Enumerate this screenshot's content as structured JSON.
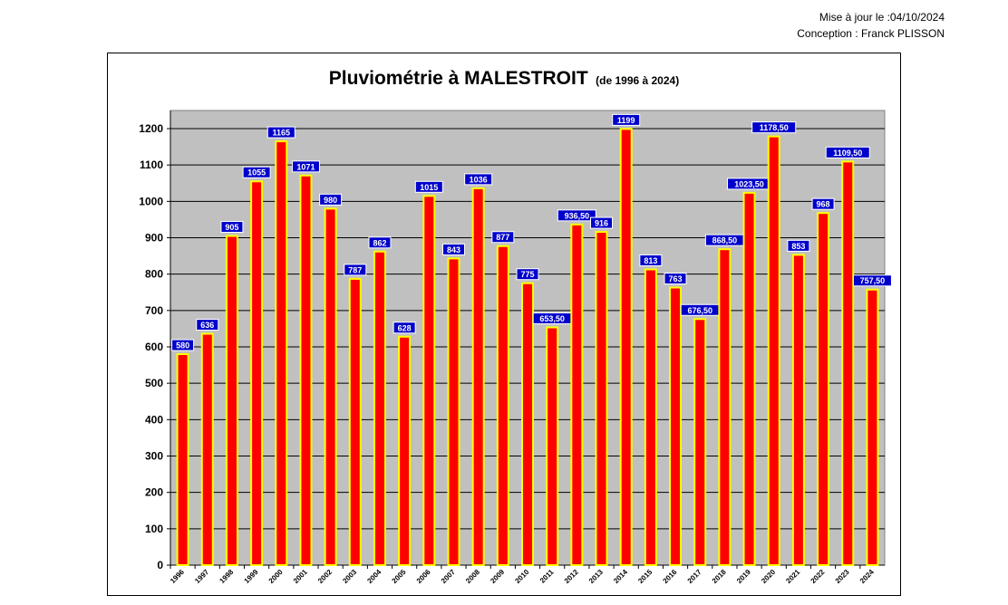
{
  "header": {
    "updated": "Mise à jour le :04/10/2024",
    "conception": "Conception : Franck PLISSON"
  },
  "chart_data": {
    "type": "bar",
    "title": "Pluviométrie à MALESTROIT",
    "subtitle": "(de 1996 à 2024)",
    "xlabel": "",
    "ylabel": "",
    "ylim": [
      0,
      1200
    ],
    "yticks": [
      0,
      100,
      200,
      300,
      400,
      500,
      600,
      700,
      800,
      900,
      1000,
      1100,
      1200
    ],
    "grid": true,
    "categories": [
      "1996",
      "1997",
      "1998",
      "1999",
      "2000",
      "2001",
      "2002",
      "2003",
      "2004",
      "2005",
      "2006",
      "2007",
      "2008",
      "2009",
      "2010",
      "2011",
      "2012",
      "2013",
      "2014",
      "2015",
      "2016",
      "2017",
      "2018",
      "2019",
      "2020",
      "2021",
      "2022",
      "2023",
      "2024"
    ],
    "values": [
      580,
      636,
      905,
      1055,
      1165,
      1071,
      980,
      787,
      862,
      628,
      1015,
      843,
      1036,
      877,
      775,
      653.5,
      936.5,
      916,
      1199,
      813,
      763,
      676.5,
      868.5,
      1023.5,
      1178.5,
      853,
      968,
      1109.5,
      757.5
    ],
    "labels": [
      "580",
      "636",
      "905",
      "1055",
      "1165",
      "1071",
      "980",
      "787",
      "862",
      "628",
      "1015",
      "843",
      "1036",
      "877",
      "775",
      "653,50",
      "936,50",
      "916",
      "1199",
      "813",
      "763",
      "676,50",
      "868,50",
      "1023,50",
      "1178,50",
      "853",
      "968",
      "1109,50",
      "757,50"
    ],
    "colors": {
      "bar_fill": "#ff0000",
      "bar_border": "#ffff00",
      "plot_background": "#c0c0c0",
      "label_background": "#0000cc",
      "label_text": "#ffffff",
      "gridline": "#000000"
    }
  }
}
